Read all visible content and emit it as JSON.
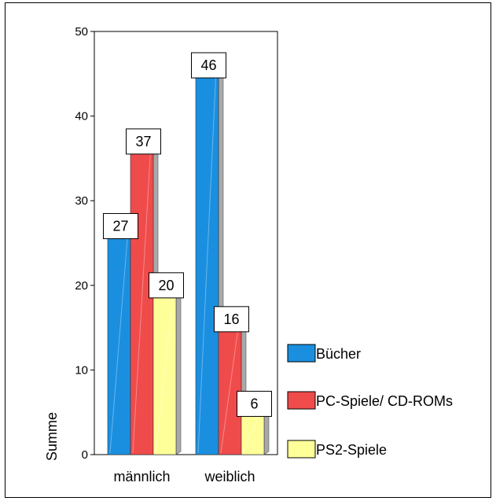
{
  "chart_data": {
    "type": "bar",
    "title": "",
    "xlabel": "",
    "ylabel": "Summe",
    "ylim": [
      0,
      50
    ],
    "yticks": [
      0,
      10,
      20,
      30,
      40,
      50
    ],
    "grid": false,
    "legend_position": "right",
    "categories": [
      "männlich",
      "weiblich"
    ],
    "series": [
      {
        "name": "Bücher",
        "color": "#1a8fe0",
        "values": [
          27,
          46
        ]
      },
      {
        "name": "PC-Spiele/ CD-ROMs",
        "color": "#f04b4b",
        "values": [
          37,
          16
        ]
      },
      {
        "name": "PS2-Spiele",
        "color": "#ffff99",
        "values": [
          20,
          6
        ]
      }
    ]
  }
}
